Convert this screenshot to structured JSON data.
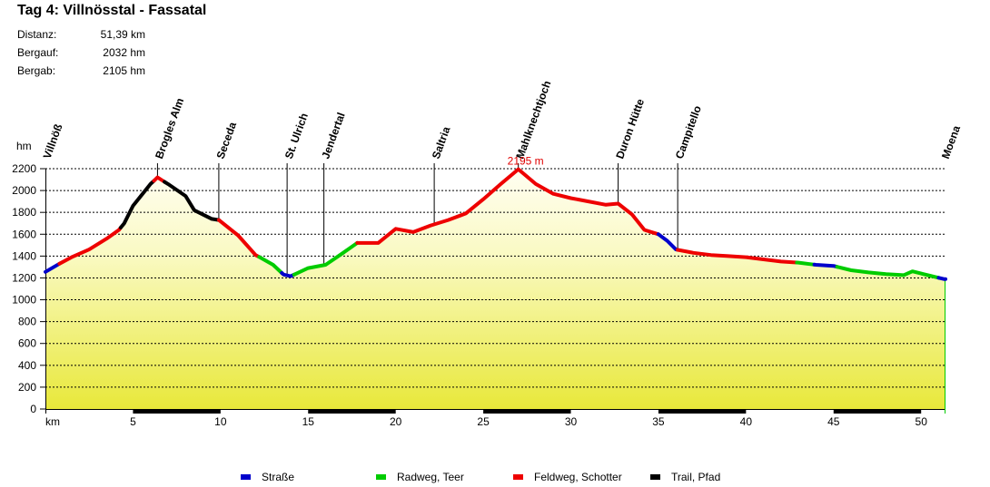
{
  "header": {
    "title": "Tag 4: Villnösstal - Fassatal",
    "stats": [
      {
        "label": "Distanz:",
        "value": "51,39 km"
      },
      {
        "label": "Bergauf:",
        "value": "2032 hm"
      },
      {
        "label": "Bergab:",
        "value": "2105 hm"
      }
    ]
  },
  "chart_data": {
    "type": "area",
    "xlabel": "km",
    "ylabel": "hm",
    "xlim": [
      0,
      51.39
    ],
    "ylim": [
      0,
      2200
    ],
    "x_ticks": [
      5,
      10,
      15,
      20,
      25,
      30,
      35,
      40,
      45,
      50
    ],
    "y_ticks": [
      0,
      200,
      400,
      600,
      800,
      1000,
      1200,
      1400,
      1600,
      1800,
      2000,
      2200
    ],
    "grid": true,
    "peak_label": "2195 m",
    "peak": {
      "x": 27.0,
      "y": 2195
    },
    "waypoints": [
      {
        "name": "Villnöß",
        "x": 0.0
      },
      {
        "name": "Brogles Alm",
        "x": 6.4
      },
      {
        "name": "Seceda",
        "x": 9.9
      },
      {
        "name": "St. Ulrich",
        "x": 13.8
      },
      {
        "name": "Jendertal",
        "x": 15.9
      },
      {
        "name": "Saltria",
        "x": 22.2
      },
      {
        "name": "Mahlknechtjoch",
        "x": 27.0
      },
      {
        "name": "Duron Hütte",
        "x": 32.7
      },
      {
        "name": "Campitello",
        "x": 36.1
      },
      {
        "name": "Moena",
        "x": 51.3
      }
    ],
    "surface_colors": {
      "Straße": "#0000cc",
      "Radweg, Teer": "#00cc00",
      "Feldweg, Schotter": "#ee0000",
      "Trail, Pfad": "#000000"
    },
    "legend": [
      "Straße",
      "Radweg, Teer",
      "Feldweg, Schotter",
      "Trail, Pfad"
    ],
    "profile_x": [
      0,
      0.8,
      1.5,
      2.5,
      3.5,
      4.2,
      4.5,
      5.0,
      5.5,
      6.0,
      6.4,
      7.0,
      8.0,
      8.5,
      9.5,
      9.9,
      11.0,
      12.0,
      13.0,
      13.6,
      14.0,
      15.0,
      16.0,
      17.0,
      17.8,
      19.0,
      20.0,
      21.0,
      22.0,
      23.0,
      24.0,
      25.0,
      26.0,
      27.0,
      28.0,
      29.0,
      30.0,
      31.0,
      32.0,
      32.7,
      33.5,
      34.2,
      35.0,
      35.5,
      36.0,
      37.0,
      38.0,
      39.0,
      40.0,
      41.0,
      42.0,
      43.0,
      44.0,
      45.0,
      46.0,
      47.0,
      48.0,
      49.0,
      49.5,
      50.0,
      50.5,
      51.3
    ],
    "profile_y": [
      1255,
      1330,
      1390,
      1460,
      1560,
      1640,
      1700,
      1860,
      1960,
      2060,
      2120,
      2060,
      1950,
      1820,
      1740,
      1730,
      1590,
      1410,
      1320,
      1230,
      1215,
      1290,
      1320,
      1430,
      1520,
      1520,
      1650,
      1620,
      1680,
      1730,
      1790,
      1920,
      2060,
      2195,
      2060,
      1970,
      1930,
      1900,
      1870,
      1880,
      1780,
      1640,
      1600,
      1540,
      1460,
      1430,
      1410,
      1400,
      1390,
      1370,
      1350,
      1340,
      1320,
      1310,
      1270,
      1250,
      1235,
      1225,
      1260,
      1240,
      1220,
      1190
    ],
    "segments": [
      {
        "surface": "Straße",
        "from": 0,
        "to": 0.8
      },
      {
        "surface": "Feldweg, Schotter",
        "from": 0.8,
        "to": 4.3
      },
      {
        "surface": "Trail, Pfad",
        "from": 4.3,
        "to": 6.2
      },
      {
        "surface": "Feldweg, Schotter",
        "from": 6.2,
        "to": 6.8
      },
      {
        "surface": "Trail, Pfad",
        "from": 6.8,
        "to": 9.9
      },
      {
        "surface": "Feldweg, Schotter",
        "from": 9.9,
        "to": 12.2
      },
      {
        "surface": "Radweg, Teer",
        "from": 12.2,
        "to": 13.5
      },
      {
        "surface": "Straße",
        "from": 13.5,
        "to": 14.2
      },
      {
        "surface": "Radweg, Teer",
        "from": 14.2,
        "to": 17.8
      },
      {
        "surface": "Feldweg, Schotter",
        "from": 17.8,
        "to": 35.0
      },
      {
        "surface": "Straße",
        "from": 35.0,
        "to": 36.1
      },
      {
        "surface": "Feldweg, Schotter",
        "from": 36.1,
        "to": 42.9
      },
      {
        "surface": "Radweg, Teer",
        "from": 42.9,
        "to": 43.9
      },
      {
        "surface": "Straße",
        "from": 43.9,
        "to": 45.2
      },
      {
        "surface": "Radweg, Teer",
        "from": 45.2,
        "to": 51.0
      },
      {
        "surface": "Straße",
        "from": 51.0,
        "to": 51.39
      }
    ]
  }
}
